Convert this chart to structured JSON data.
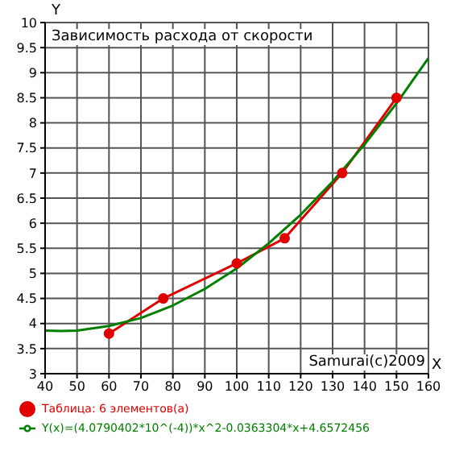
{
  "chart_data": {
    "type": "line",
    "title": "Зависимость расхода от скорости",
    "xlabel": "X",
    "ylabel": "Y",
    "xlim": [
      40,
      160
    ],
    "xticks": [
      40,
      50,
      60,
      70,
      80,
      90,
      100,
      110,
      120,
      130,
      140,
      150,
      160
    ],
    "ylim": [
      3,
      10
    ],
    "yticks": [
      3,
      3.5,
      4,
      4.5,
      5,
      5.5,
      6,
      6.5,
      7,
      7.5,
      8,
      8.5,
      9,
      9.5,
      10
    ],
    "grid": true,
    "legend": "bottom",
    "annotations": [
      "Samurai(c)2009"
    ],
    "series": [
      {
        "name": "Таблица: 6 элементов(a)",
        "color": "#e00000",
        "marker": "circle",
        "x": [
          60,
          77,
          100,
          115,
          133,
          150
        ],
        "values": [
          3.8,
          4.5,
          5.2,
          5.7,
          7.0,
          8.5
        ]
      },
      {
        "name": "Y(x)=(4.0790402*10^(-4))*x^2-0.0363304*x+4.6572456",
        "color": "#008000",
        "marker": "none",
        "x": [
          40,
          45,
          50,
          60,
          70,
          80,
          90,
          100,
          110,
          120,
          130,
          140,
          150,
          160
        ],
        "values": [
          3.86,
          3.85,
          3.86,
          3.95,
          4.11,
          4.36,
          4.69,
          5.1,
          5.6,
          6.17,
          6.83,
          7.57,
          8.39,
          9.29
        ]
      }
    ]
  }
}
